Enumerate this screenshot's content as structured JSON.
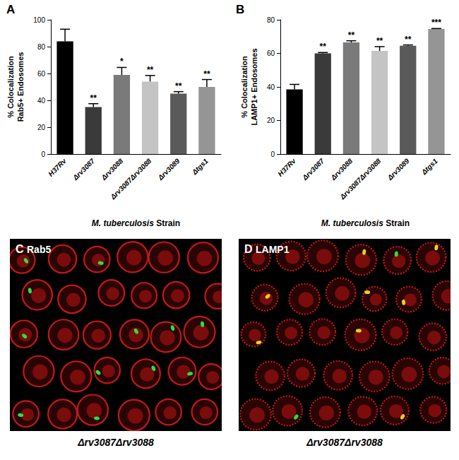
{
  "chart_data": [
    {
      "type": "bar",
      "title": "A",
      "categories": [
        "H37Rv",
        "Δrv3087",
        "Δrv3088",
        "Δrv3087Δrv3088",
        "Δrv3089",
        "Δtgs1"
      ],
      "values": [
        84,
        35,
        59,
        54,
        45,
        50
      ],
      "errors": [
        9,
        2.5,
        5.5,
        4.5,
        1.5,
        5.5
      ],
      "annotations": [
        null,
        "**",
        "*",
        "**",
        "**",
        "**"
      ],
      "colors": [
        "#000000",
        "#3a3a3a",
        "#7a7a7a",
        "#c4c4c4",
        "#5a5a5a",
        "#959595"
      ],
      "ylabel": "% Colocalization\nRab5+ Endosomes",
      "xlabel": "M. tuberculosis Strain",
      "ylim": [
        0,
        100
      ],
      "yticks": [
        0,
        20,
        40,
        60,
        80,
        100
      ]
    },
    {
      "type": "bar",
      "title": "B",
      "categories": [
        "H37Rv",
        "Δrv3087",
        "Δrv3088",
        "Δrv3087Δrv3088",
        "Δrv3089",
        "Δtgs1"
      ],
      "values": [
        38.5,
        60,
        66.5,
        61.5,
        64.5,
        74.5
      ],
      "errors": [
        3,
        0.5,
        1,
        2.5,
        0.5,
        0.3
      ],
      "annotations": [
        null,
        "**",
        "**",
        "**",
        "**",
        "***"
      ],
      "colors": [
        "#000000",
        "#3a3a3a",
        "#7a7a7a",
        "#c4c4c4",
        "#5a5a5a",
        "#959595"
      ],
      "ylabel": "% Colocalization\nLAMP1+ Endosomes",
      "xlabel": "M. tuberculosis Strain",
      "ylim": [
        0,
        80
      ],
      "yticks": [
        0,
        20,
        40,
        60,
        80
      ]
    }
  ],
  "micrographs": [
    {
      "panel": "C",
      "stain": "Rab5",
      "strain": "Δrv3087Δrv3088"
    },
    {
      "panel": "D",
      "stain": "LAMP1",
      "strain": "Δrv3087Δrv3088"
    }
  ]
}
